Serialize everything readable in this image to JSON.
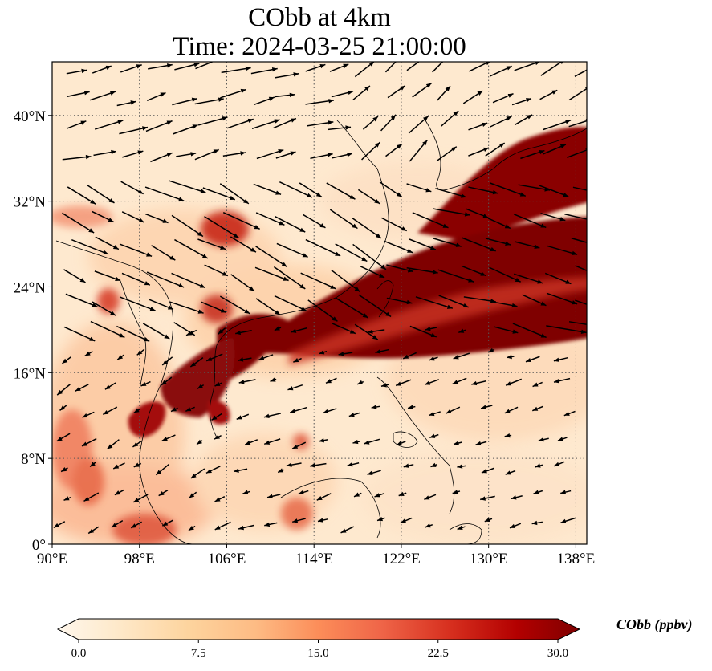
{
  "title": {
    "line1": "CObb at 4km",
    "line2": "Time: 2024-03-25 21:00:00"
  },
  "map": {
    "lon_range": [
      90,
      139
    ],
    "lat_range": [
      0,
      45
    ],
    "x_ticks": [
      {
        "value": 90,
        "label": "90°E"
      },
      {
        "value": 98,
        "label": "98°E"
      },
      {
        "value": 106,
        "label": "106°E"
      },
      {
        "value": 114,
        "label": "114°E"
      },
      {
        "value": 122,
        "label": "122°E"
      },
      {
        "value": 130,
        "label": "130°E"
      },
      {
        "value": 138,
        "label": "138°E"
      }
    ],
    "y_ticks": [
      {
        "value": 0,
        "label": "0°"
      },
      {
        "value": 8,
        "label": "8°N"
      },
      {
        "value": 16,
        "label": "16°N"
      },
      {
        "value": 24,
        "label": "24°N"
      },
      {
        "value": 32,
        "label": "32°N"
      },
      {
        "value": 40,
        "label": "40°N"
      }
    ],
    "gridlines": "dotted",
    "colormap": "OrRd",
    "colors": {
      "low": "#fff7ec",
      "mid": "#fdbb84",
      "high": "#e34a33",
      "max": "#7f0000",
      "coast": "#000000",
      "grid": "#555555"
    }
  },
  "colorbar": {
    "title": "CObb (ppbv)",
    "min": 0,
    "max": 30,
    "extend": "both",
    "ticks": [
      {
        "value": 0,
        "label": "0.0"
      },
      {
        "value": 7.5,
        "label": "7.5"
      },
      {
        "value": 15,
        "label": "15.0"
      },
      {
        "value": 22.5,
        "label": "22.5"
      },
      {
        "value": 30,
        "label": "30.0"
      }
    ]
  }
}
